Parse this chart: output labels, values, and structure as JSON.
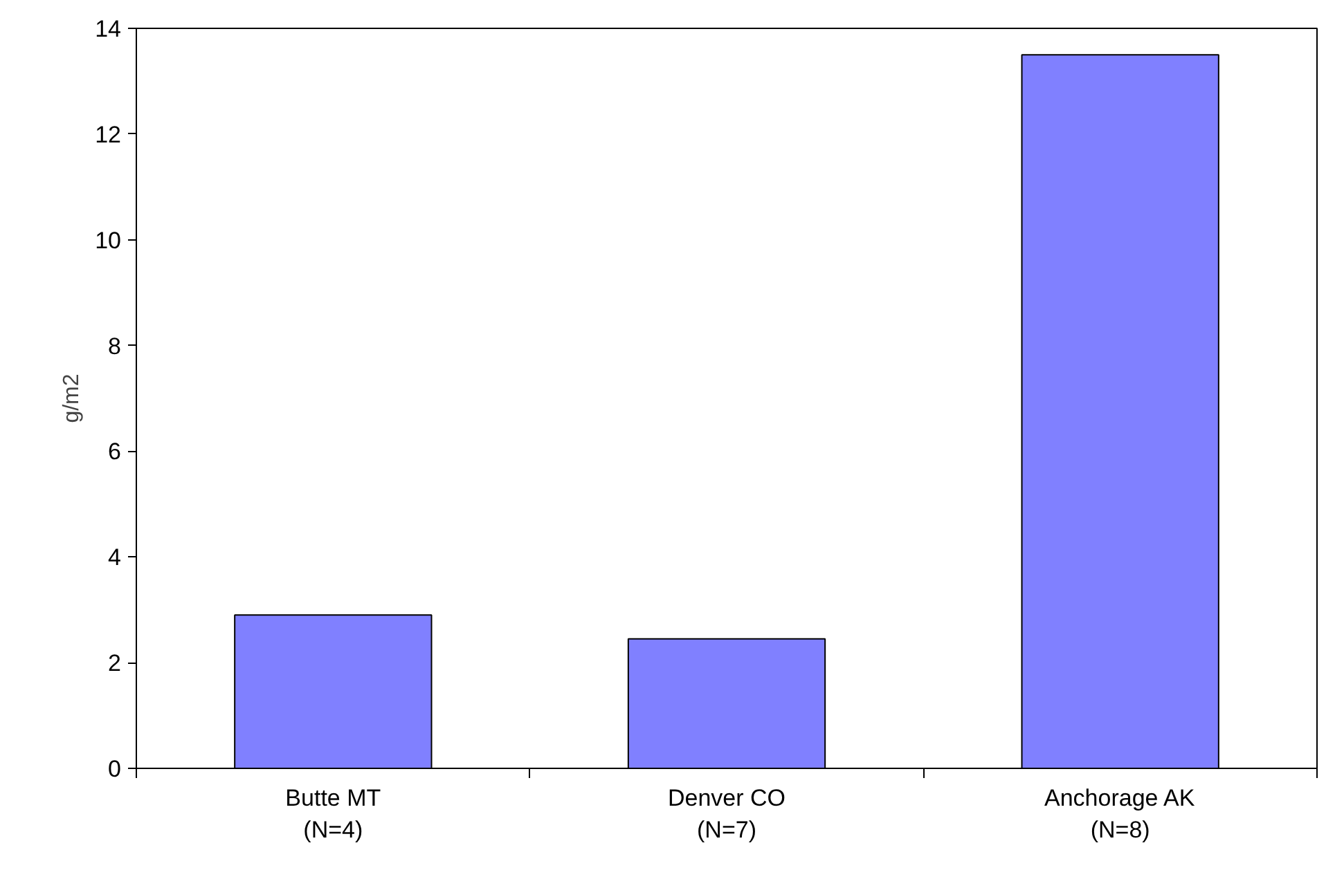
{
  "chart_data": {
    "type": "bar",
    "ylabel": "g/m2",
    "categories": [
      "Butte MT\n(N=4)",
      "Denver CO\n(N=7)",
      "Anchorage AK\n(N=8)"
    ],
    "values": [
      2.9,
      2.45,
      13.5
    ],
    "color": "#8080ff",
    "ylim": [
      0,
      14
    ],
    "yticks": [
      0,
      2,
      4,
      6,
      8,
      10,
      12,
      14
    ],
    "grid": false
  }
}
